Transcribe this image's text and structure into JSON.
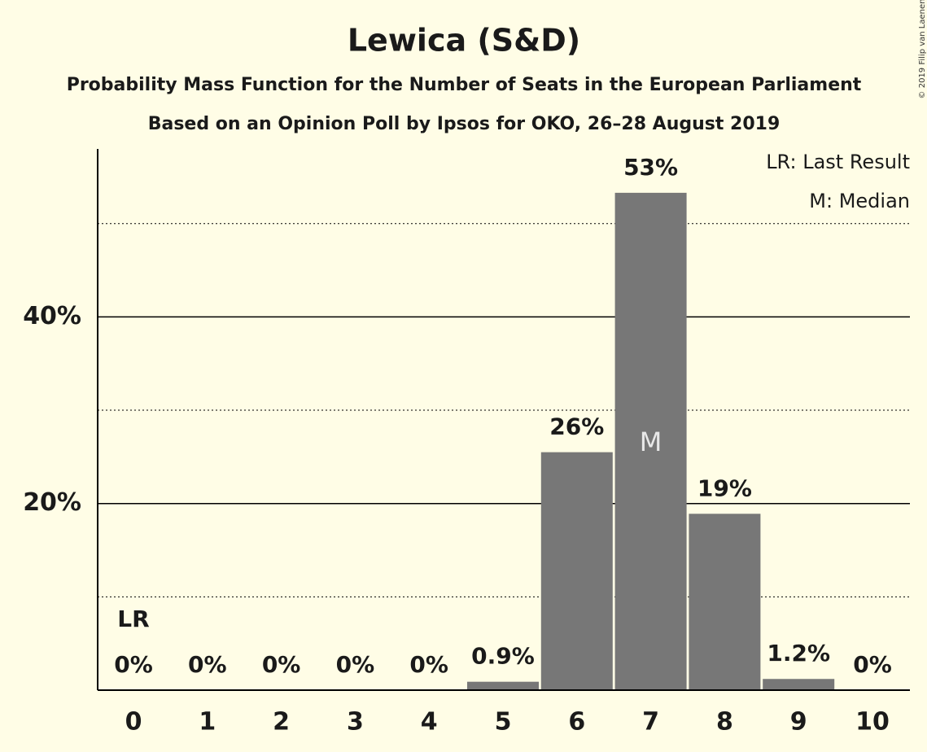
{
  "chart_data": {
    "type": "bar",
    "title": "Lewica (S&D)",
    "subtitle": "Probability Mass Function for the Number of Seats in the European Parliament",
    "subtitle2": "Based on an Opinion Poll by Ipsos for OKO, 26–28 August 2019",
    "copyright": "© 2019 Filip van Laenen",
    "categories": [
      "0",
      "1",
      "2",
      "3",
      "4",
      "5",
      "6",
      "7",
      "8",
      "9",
      "10"
    ],
    "values": [
      0,
      0,
      0,
      0,
      0,
      0.9,
      25.5,
      53.3,
      18.9,
      1.2,
      0
    ],
    "value_labels": [
      "0%",
      "0%",
      "0%",
      "0%",
      "0%",
      "0.9%",
      "26%",
      "53%",
      "19%",
      "1.2%",
      "0%"
    ],
    "color": "#777777",
    "ylim": [
      0,
      58
    ],
    "yticks": [
      {
        "value": 20,
        "label": "20%"
      },
      {
        "value": 40,
        "label": "40%"
      }
    ],
    "minor_yticks": [
      10,
      30,
      50
    ],
    "grid": true,
    "annotations": [
      {
        "label": "LR",
        "category": "0"
      },
      {
        "label": "M",
        "category": "7"
      }
    ],
    "legend": [
      "LR: Last Result",
      "M: Median"
    ],
    "legend_position": "top-right"
  }
}
